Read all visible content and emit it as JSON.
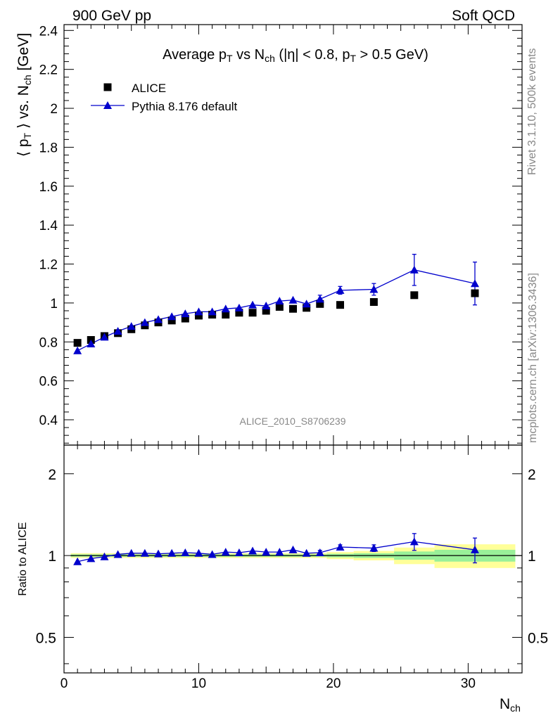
{
  "header": {
    "left": "900 GeV pp",
    "right": "Soft QCD"
  },
  "side": {
    "top": "Rivet 3.1.10,  500k events",
    "bottom": "mcplots.cern.ch [arXiv:1306.3436]"
  },
  "watermark": "ALICE_2010_S8706239",
  "chart_data": [
    {
      "type": "scatter",
      "panel": "main",
      "title_parts": [
        "Average p",
        "T",
        " vs N",
        "ch",
        " (|η| < 0.8, p",
        "T",
        " > 0.5 GeV)"
      ],
      "ylabel_parts": [
        "⟨ p",
        "T",
        " ⟩ vs. N",
        "ch",
        " [GeV]"
      ],
      "xlim": [
        0,
        34
      ],
      "ylim": [
        0.27,
        2.43
      ],
      "yticks": [
        {
          "v": 0.4,
          "label": "0.4"
        },
        {
          "v": 0.6,
          "label": "0.6"
        },
        {
          "v": 0.8,
          "label": "0.8"
        },
        {
          "v": 1.0,
          "label": "1"
        },
        {
          "v": 1.2,
          "label": "1.2"
        },
        {
          "v": 1.4,
          "label": "1.4"
        },
        {
          "v": 1.6,
          "label": "1.6"
        },
        {
          "v": 1.8,
          "label": "1.8"
        },
        {
          "v": 2.0,
          "label": "2"
        },
        {
          "v": 2.2,
          "label": "2.2"
        },
        {
          "v": 2.4,
          "label": "2.4"
        }
      ],
      "legend_position": "top-left",
      "series": [
        {
          "name": "ALICE",
          "marker": "square",
          "color": "#000000",
          "x": [
            1,
            2,
            3,
            4,
            5,
            6,
            7,
            8,
            9,
            10,
            11,
            12,
            13,
            14,
            15,
            16,
            17,
            18,
            19,
            20.5,
            23,
            26,
            30.5
          ],
          "y": [
            0.795,
            0.81,
            0.83,
            0.845,
            0.865,
            0.885,
            0.9,
            0.91,
            0.92,
            0.935,
            0.94,
            0.94,
            0.95,
            0.95,
            0.96,
            0.98,
            0.97,
            0.975,
            0.995,
            0.99,
            1.005,
            1.04,
            1.05
          ]
        },
        {
          "name": "Pythia 8.176 default",
          "marker": "triangle",
          "color": "#0000cc",
          "x": [
            1,
            2,
            3,
            4,
            5,
            6,
            7,
            8,
            9,
            10,
            11,
            12,
            13,
            14,
            15,
            16,
            17,
            18,
            19,
            20.5,
            23,
            26,
            30.5
          ],
          "y": [
            0.755,
            0.79,
            0.825,
            0.855,
            0.88,
            0.9,
            0.915,
            0.93,
            0.945,
            0.955,
            0.955,
            0.97,
            0.975,
            0.99,
            0.985,
            1.01,
            1.015,
            0.995,
            1.02,
            1.065,
            1.07,
            1.17,
            1.1
          ],
          "err": [
            0,
            0,
            0,
            0,
            0,
            0,
            0,
            0,
            0,
            0,
            0,
            0,
            0,
            0,
            0,
            0,
            0,
            0,
            0.02,
            0.02,
            0.03,
            0.08,
            0.11
          ]
        }
      ]
    },
    {
      "type": "scatter",
      "panel": "ratio",
      "ylabel": "Ratio to ALICE",
      "xlabel_parts": [
        "N",
        "ch"
      ],
      "xlim": [
        0,
        34
      ],
      "ylim": [
        0.37,
        2.55
      ],
      "log_y": true,
      "yticks": [
        {
          "v": 0.5,
          "label": "0.5"
        },
        {
          "v": 1.0,
          "label": "1"
        },
        {
          "v": 2.0,
          "label": "2"
        }
      ],
      "xticks": [
        {
          "v": 0,
          "label": "0"
        },
        {
          "v": 10,
          "label": "10"
        },
        {
          "v": 20,
          "label": "20"
        },
        {
          "v": 30,
          "label": "30"
        }
      ],
      "bands": [
        {
          "x0": 0.5,
          "x1": 19.5,
          "yel": [
            0.98,
            1.02
          ],
          "grn": [
            0.99,
            1.01
          ]
        },
        {
          "x0": 19.5,
          "x1": 21.5,
          "yel": [
            0.97,
            1.03
          ],
          "grn": [
            0.985,
            1.015
          ]
        },
        {
          "x0": 21.5,
          "x1": 24.5,
          "yel": [
            0.96,
            1.04
          ],
          "grn": [
            0.98,
            1.02
          ]
        },
        {
          "x0": 24.5,
          "x1": 27.5,
          "yel": [
            0.93,
            1.07
          ],
          "grn": [
            0.965,
            1.035
          ]
        },
        {
          "x0": 27.5,
          "x1": 33.5,
          "yel": [
            0.9,
            1.1
          ],
          "grn": [
            0.95,
            1.05
          ]
        }
      ],
      "series": [
        {
          "name": "Pythia 8.176 default",
          "marker": "triangle",
          "color": "#0000cc",
          "x": [
            1,
            2,
            3,
            4,
            5,
            6,
            7,
            8,
            9,
            10,
            11,
            12,
            13,
            14,
            15,
            16,
            17,
            18,
            19,
            20.5,
            23,
            26,
            30.5
          ],
          "y": [
            0.95,
            0.975,
            0.99,
            1.01,
            1.02,
            1.02,
            1.015,
            1.02,
            1.025,
            1.02,
            1.01,
            1.03,
            1.025,
            1.04,
            1.03,
            1.03,
            1.05,
            1.02,
            1.025,
            1.075,
            1.065,
            1.125,
            1.05
          ],
          "err": [
            0,
            0,
            0,
            0,
            0,
            0,
            0,
            0,
            0,
            0,
            0,
            0,
            0,
            0,
            0,
            0,
            0,
            0,
            0.02,
            0.02,
            0.03,
            0.08,
            0.11
          ]
        }
      ]
    }
  ]
}
